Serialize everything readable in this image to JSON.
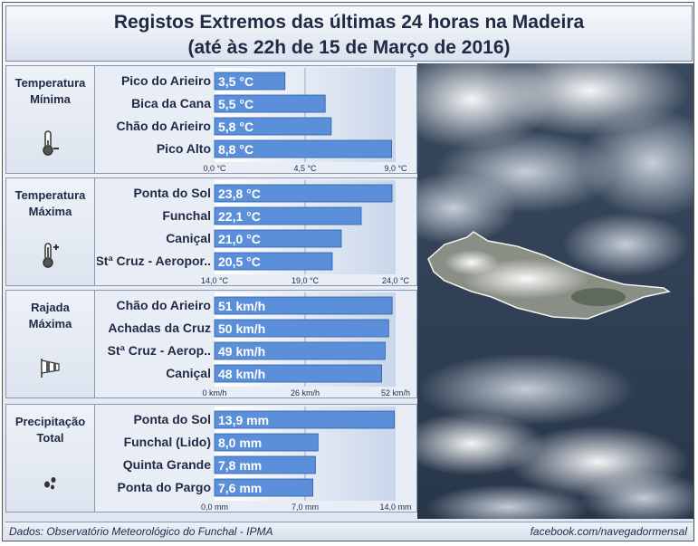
{
  "title": {
    "line1": "Registos Extremos das últimas 24 horas na Madeira",
    "line2": "(até às 22h de 15 de Março de 2016)"
  },
  "panels": [
    {
      "label": "Temperatura Mínima",
      "icon": "thermometer-minus-icon",
      "chart_data": {
        "type": "bar",
        "orientation": "horizontal",
        "categories": [
          "Pico do Arieiro",
          "Bica da Cana",
          "Chão do Arieiro",
          "Pico Alto"
        ],
        "values": [
          3.5,
          5.5,
          5.8,
          8.8
        ],
        "value_labels": [
          "3,5 °C",
          "5,5 °C",
          "5,8 °C",
          "8,8 °C"
        ],
        "xlim": [
          0,
          9
        ],
        "ticks": [
          0,
          4.5,
          9
        ],
        "tick_labels": [
          "0,0 °C",
          "4,5 °C",
          "9,0 °C"
        ]
      }
    },
    {
      "label": "Temperatura Máxima",
      "icon": "thermometer-plus-icon",
      "chart_data": {
        "type": "bar",
        "orientation": "horizontal",
        "categories": [
          "Ponta do Sol",
          "Funchal",
          "Caniçal",
          "Stª Cruz - Aeropor.."
        ],
        "values": [
          23.8,
          22.1,
          21.0,
          20.5
        ],
        "value_labels": [
          "23,8 °C",
          "22,1 °C",
          "21,0 °C",
          "20,5 °C"
        ],
        "xlim": [
          14,
          24
        ],
        "ticks": [
          14,
          19,
          24
        ],
        "tick_labels": [
          "14,0 °C",
          "19,0 °C",
          "24,0 °C"
        ]
      }
    },
    {
      "label": "Rajada Máxima",
      "icon": "windsock-icon",
      "chart_data": {
        "type": "bar",
        "orientation": "horizontal",
        "categories": [
          "Chão do Arieiro",
          "Achadas da Cruz",
          "Stª Cruz - Aerop..",
          "Caniçal"
        ],
        "values": [
          51,
          50,
          49,
          48
        ],
        "value_labels": [
          "51 km/h",
          "50 km/h",
          "49 km/h",
          "48 km/h"
        ],
        "xlim": [
          0,
          52
        ],
        "ticks": [
          0,
          26,
          52
        ],
        "tick_labels": [
          "0 km/h",
          "26 km/h",
          "52 km/h"
        ]
      }
    },
    {
      "label": "Precipitação Total",
      "icon": "raindrops-icon",
      "chart_data": {
        "type": "bar",
        "orientation": "horizontal",
        "categories": [
          "Ponta do Sol",
          "Funchal (Lido)",
          "Quinta Grande",
          "Ponta do Pargo"
        ],
        "values": [
          13.9,
          8.0,
          7.8,
          7.6
        ],
        "value_labels": [
          "13,9 mm",
          "8,0 mm",
          "7,8 mm",
          "7,6 mm"
        ],
        "xlim": [
          0,
          14
        ],
        "ticks": [
          0,
          7,
          14
        ],
        "tick_labels": [
          "0,0 mm",
          "7,0 mm",
          "14,0 mm"
        ]
      }
    }
  ],
  "footer": {
    "source": "Dados:  Observatório Meteorológico do Funchal - IPMA",
    "credit": "facebook.com/navegadormensal"
  },
  "colors": {
    "bar": "#5b8fd9",
    "bar_edge": "#2f5fa8",
    "text": "#1f2a44"
  }
}
